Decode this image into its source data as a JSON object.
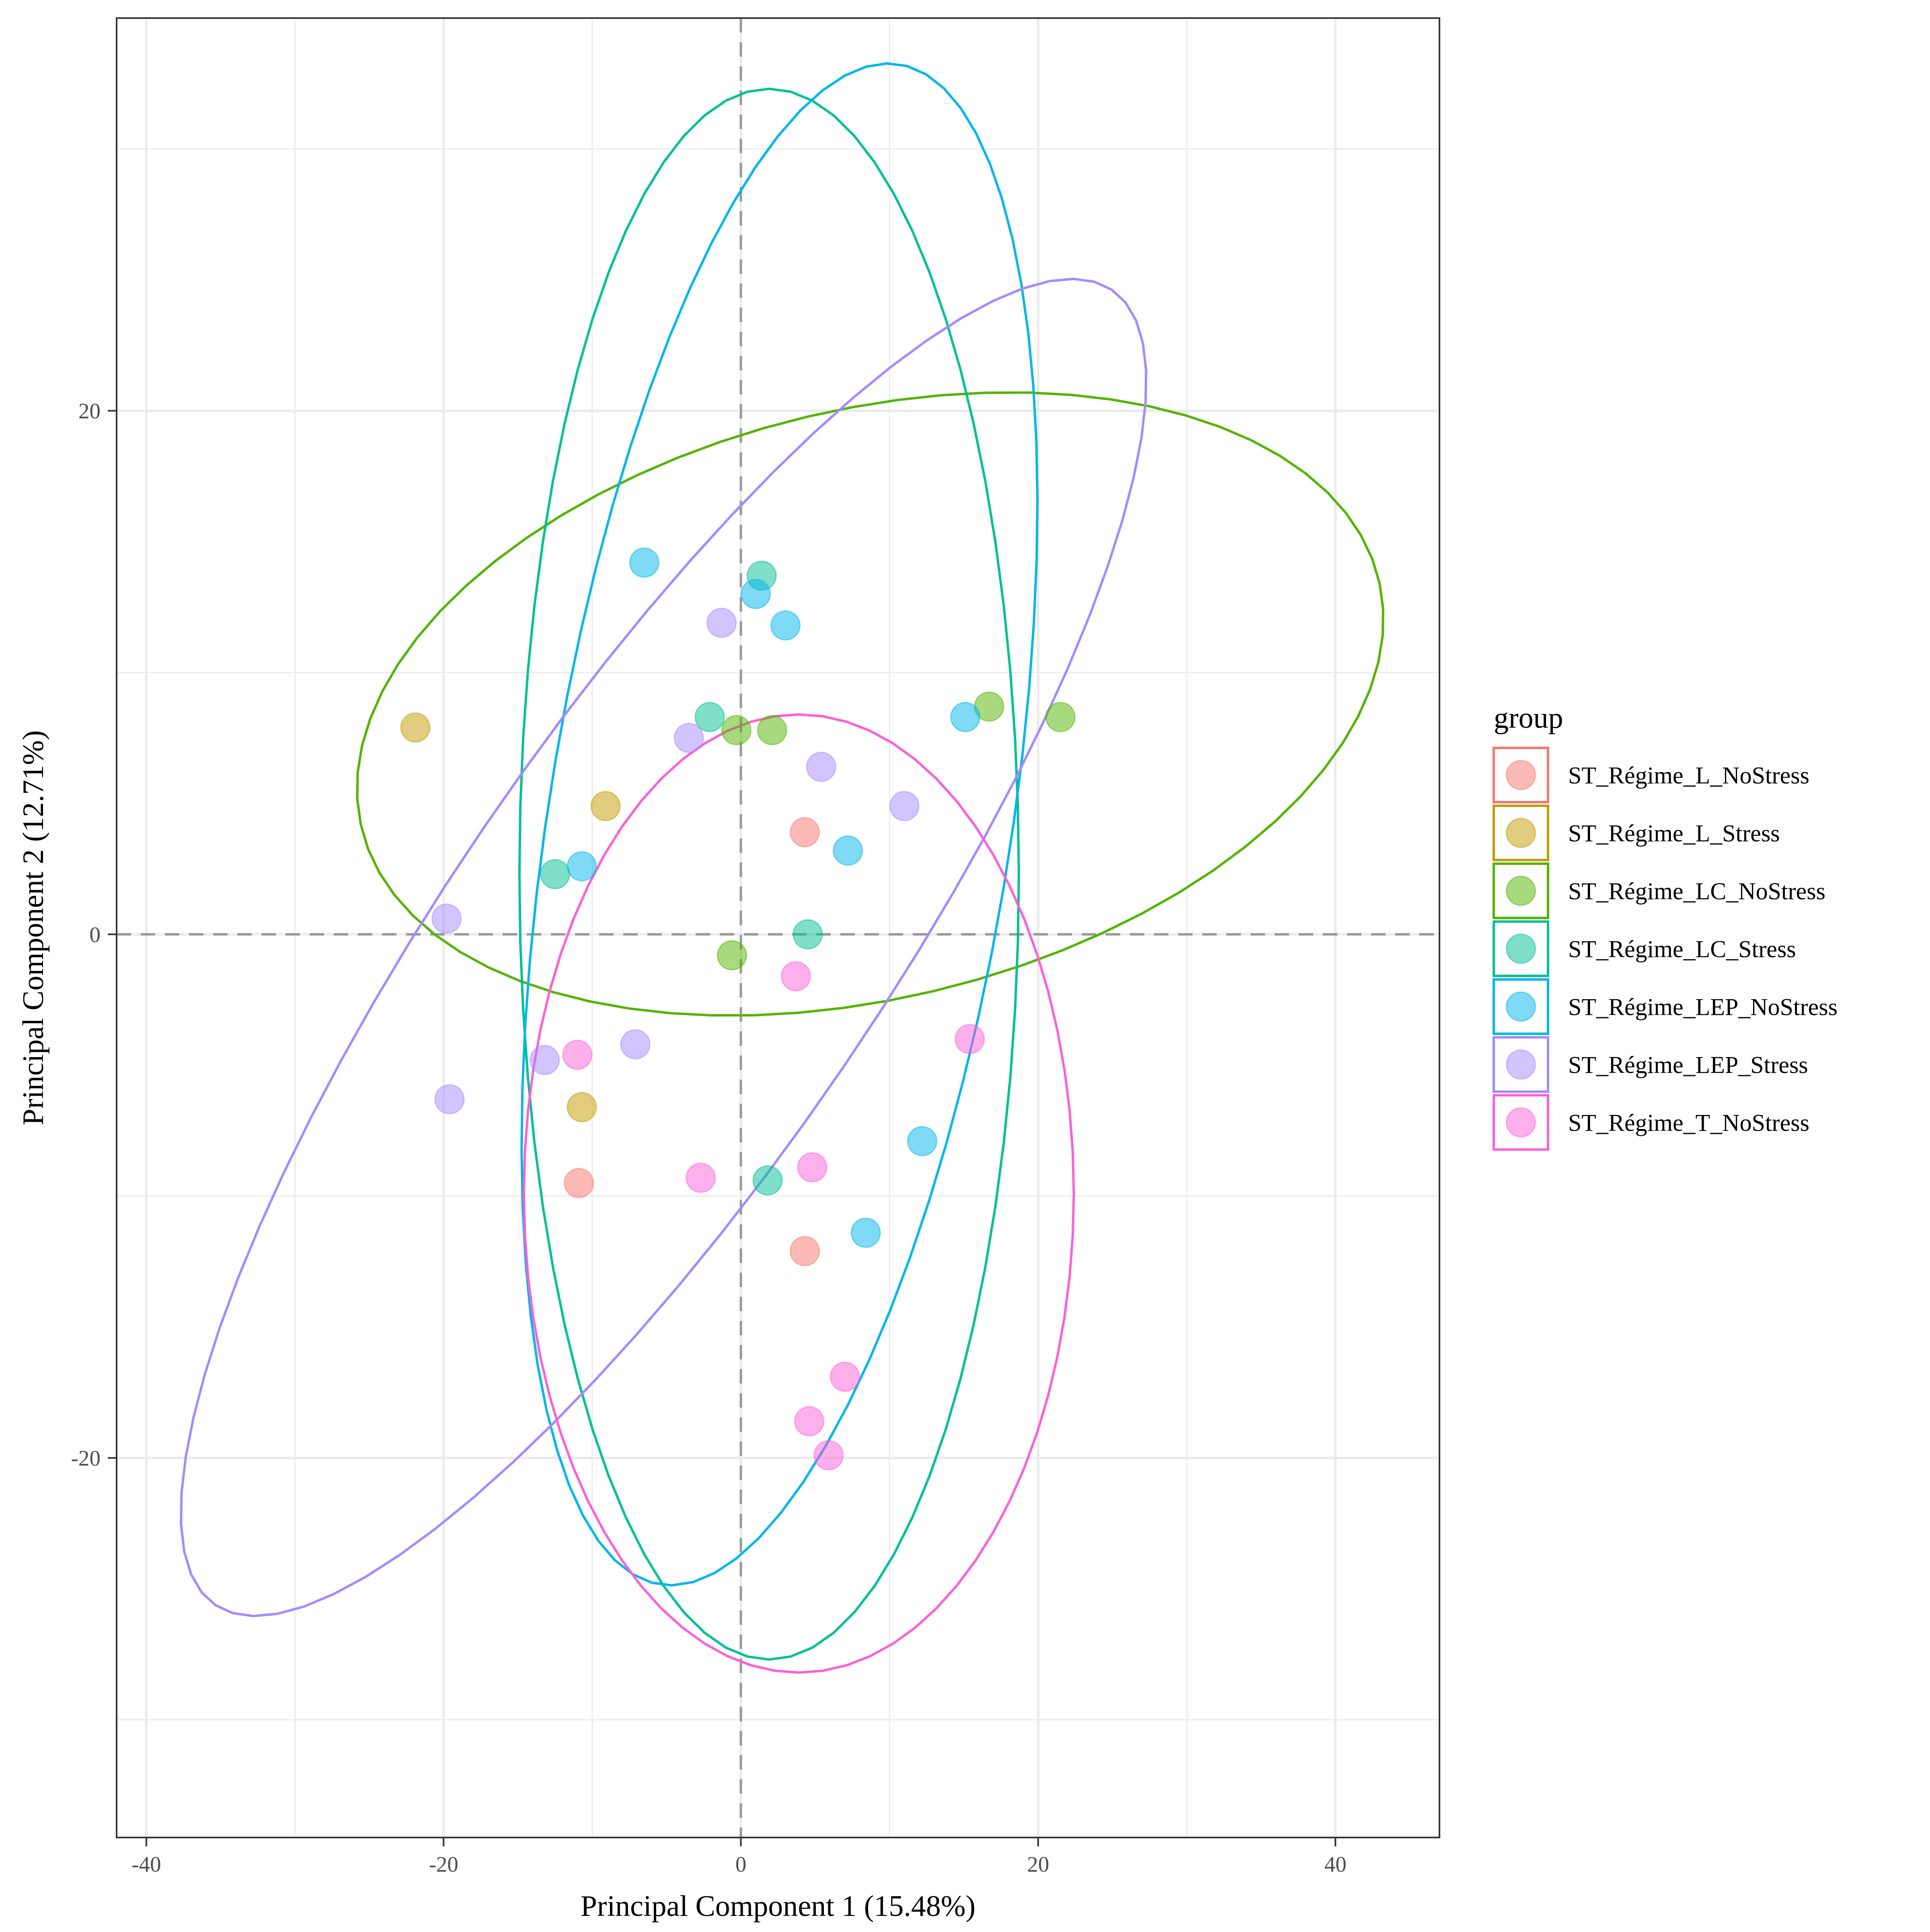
{
  "chart_data": {
    "type": "scatter",
    "xlabel": "Principal Component 1 (15.48%)",
    "ylabel": "Principal Component 2 (12.71%)",
    "xlim": [
      -42,
      47
    ],
    "ylim": [
      -34.5,
      35
    ],
    "xticks": [
      -40,
      -20,
      0,
      20,
      40
    ],
    "yticks": [
      -20,
      0,
      20
    ],
    "grid": true,
    "reference_lines": [
      0,
      0
    ],
    "legend": {
      "title": "group",
      "position": "right"
    },
    "series": [
      {
        "name": "ST_Régime_L_NoStress",
        "color": "#F8766D",
        "points": [
          [
            4.3,
            3.9
          ],
          [
            4.3,
            -12.1
          ],
          [
            -10.9,
            -9.5
          ]
        ],
        "ellipse": null
      },
      {
        "name": "ST_Régime_L_Stress",
        "color": "#C49A00",
        "points": [
          [
            -21.9,
            7.9
          ],
          [
            -9.1,
            4.9
          ],
          [
            -10.7,
            -6.6
          ]
        ],
        "ellipse": null
      },
      {
        "name": "ST_Régime_LC_NoStress",
        "color": "#53B400",
        "points": [
          [
            -0.3,
            7.8
          ],
          [
            2.1,
            7.8
          ],
          [
            16.7,
            8.7
          ],
          [
            21.5,
            8.3
          ],
          [
            -0.6,
            -0.8
          ]
        ],
        "ellipse": {
          "cx": 8.7,
          "cy": 8.8,
          "rx": 34.7,
          "ry": 11.4,
          "angle": 6
        }
      },
      {
        "name": "ST_Régime_LC_Stress",
        "color": "#00C094",
        "points": [
          [
            1.4,
            13.7
          ],
          [
            -2.1,
            8.3
          ],
          [
            -12.5,
            2.3
          ],
          [
            4.5,
            0
          ],
          [
            1.8,
            -9.4
          ]
        ],
        "ellipse": {
          "cx": 1.9,
          "cy": 2.3,
          "rx": 16.8,
          "ry": 30.0,
          "angle": 0
        }
      },
      {
        "name": "ST_Régime_LEP_NoStress",
        "color": "#00B6EB",
        "points": [
          [
            -6.5,
            14.2
          ],
          [
            1.0,
            13.0
          ],
          [
            3.0,
            11.8
          ],
          [
            15.1,
            8.3
          ],
          [
            -10.7,
            2.6
          ],
          [
            7.2,
            3.2
          ],
          [
            12.2,
            -7.9
          ],
          [
            8.4,
            -11.4
          ]
        ],
        "ellipse": {
          "cx": 2.6,
          "cy": 4.2,
          "rx": 15.1,
          "ry": 30.3,
          "angle": -19
        }
      },
      {
        "name": "ST_Régime_LEP_Stress",
        "color": "#A58AFF",
        "points": [
          [
            -1.3,
            11.9
          ],
          [
            -3.5,
            7.5
          ],
          [
            5.4,
            6.4
          ],
          [
            11.0,
            4.9
          ],
          [
            -19.8,
            0.6
          ],
          [
            -7.1,
            -4.2
          ],
          [
            -13.2,
            -4.8
          ],
          [
            -19.6,
            -6.3
          ]
        ],
        "ellipse": {
          "cx": -5.2,
          "cy": -0.5,
          "rx": 39.8,
          "ry": 11.1,
          "angle": 37
        }
      },
      {
        "name": "ST_Régime_T_NoStress",
        "color": "#FB61D7",
        "points": [
          [
            3.7,
            -1.6
          ],
          [
            15.4,
            -4.0
          ],
          [
            -11.0,
            -4.6
          ],
          [
            4.8,
            -8.9
          ],
          [
            -2.7,
            -9.3
          ],
          [
            7.0,
            -16.9
          ],
          [
            4.6,
            -18.6
          ],
          [
            5.9,
            -19.9
          ]
        ],
        "ellipse": {
          "cx": 3.9,
          "cy": -9.9,
          "rx": 18.3,
          "ry": 18.5,
          "angle": 90
        }
      }
    ]
  }
}
